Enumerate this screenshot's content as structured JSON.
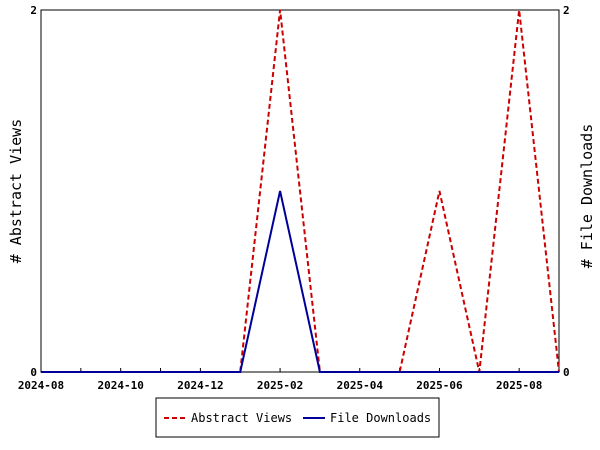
{
  "chart_data": {
    "type": "line",
    "x": [
      "2024-08",
      "2024-09",
      "2024-10",
      "2024-11",
      "2024-12",
      "2025-01",
      "2025-02",
      "2025-03",
      "2025-04",
      "2025-05",
      "2025-06",
      "2025-07",
      "2025-08",
      "2025-09"
    ],
    "x_tick_labels": [
      "2024-08",
      "2024-10",
      "2024-12",
      "2025-02",
      "2025-04",
      "2025-06",
      "2025-08"
    ],
    "series": [
      {
        "name": "Abstract Views",
        "axis": "left",
        "color": "#cc0000",
        "dash": "dashed",
        "values": [
          0,
          0,
          0,
          0,
          0,
          0,
          2,
          0,
          0,
          0,
          1,
          0,
          2,
          0
        ]
      },
      {
        "name": "File Downloads",
        "axis": "right",
        "color": "#000099",
        "dash": "solid",
        "values": [
          0,
          0,
          0,
          0,
          0,
          0,
          1,
          0,
          0,
          0,
          0,
          0,
          0,
          0
        ]
      }
    ],
    "ylabel_left": "# Abstract Views",
    "ylabel_right": "# File Downloads",
    "ylim_left": [
      0,
      2
    ],
    "ylim_right": [
      0,
      2
    ],
    "y_ticks_left": [
      "0",
      "2"
    ],
    "y_ticks_right": [
      "0",
      "2"
    ],
    "grid": false,
    "legend_position": "bottom"
  }
}
